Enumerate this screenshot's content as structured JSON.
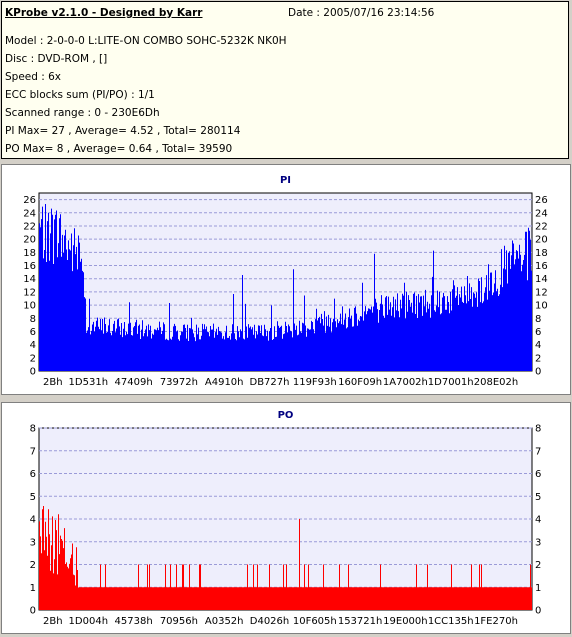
{
  "header": {
    "title": "KProbe v2.1.0 - Designed by Karr",
    "date": "Date : 2005/07/16 23:14:56",
    "lines": [
      "Model : 2-0-0-0 L:LITE-ON COMBO SOHC-5232K NK0H",
      "Disc : DVD-ROM ,  []",
      "Speed : 6x",
      "ECC blocks sum (PI/PO) : 1/1",
      "Scanned range : 0 - 230E6Dh",
      "PI Max= 27 , Average= 4.52 , Total= 280114",
      "PO Max= 8 , Average= 0.64 , Total= 39590"
    ]
  },
  "colors": {
    "pi": "#0000ff",
    "po": "#ff0000",
    "plot_bg": "#eeeefc",
    "grid": "#9a9ad8"
  },
  "chart_data": [
    {
      "type": "bar",
      "title": "PI",
      "ylim": [
        0,
        27
      ],
      "yticks": [
        "0",
        "2",
        "4",
        "6",
        "8",
        "10",
        "12",
        "14",
        "16",
        "18",
        "20",
        "22",
        "24",
        "26"
      ],
      "xticks": [
        "2Bh",
        "1D531h",
        "47409h",
        "73972h",
        "A4910h",
        "DB727h",
        "119F93h",
        "160F09h",
        "1A7002h",
        "1D7001h",
        "208E02h"
      ],
      "grid": "horizontal dashed",
      "profile": [
        {
          "x": 0,
          "v": 22
        },
        {
          "x": 0.04,
          "v": 21
        },
        {
          "x": 0.09,
          "v": 17
        },
        {
          "x": 0.095,
          "v": 7
        },
        {
          "x": 0.3,
          "v": 6
        },
        {
          "x": 0.45,
          "v": 6
        },
        {
          "x": 0.55,
          "v": 7
        },
        {
          "x": 0.7,
          "v": 10
        },
        {
          "x": 0.82,
          "v": 11
        },
        {
          "x": 0.9,
          "v": 13
        },
        {
          "x": 0.96,
          "v": 17
        },
        {
          "x": 1.0,
          "v": 18
        }
      ]
    },
    {
      "type": "bar",
      "title": "PO",
      "ylim": [
        0,
        8
      ],
      "yticks": [
        "0",
        "1",
        "2",
        "3",
        "4",
        "5",
        "6",
        "7",
        "8"
      ],
      "xticks": [
        "2Bh",
        "1D004h",
        "45738h",
        "70956h",
        "A0352h",
        "D4026h",
        "10F605h",
        "153721h",
        "19E000h",
        "1CC135h",
        "1FE270h"
      ],
      "grid": "horizontal dashed",
      "profile": [
        {
          "x": 0,
          "v": 3.5
        },
        {
          "x": 0.04,
          "v": 3
        },
        {
          "x": 0.075,
          "v": 2
        },
        {
          "x": 0.08,
          "v": 1
        },
        {
          "x": 1.0,
          "v": 1
        }
      ]
    }
  ]
}
